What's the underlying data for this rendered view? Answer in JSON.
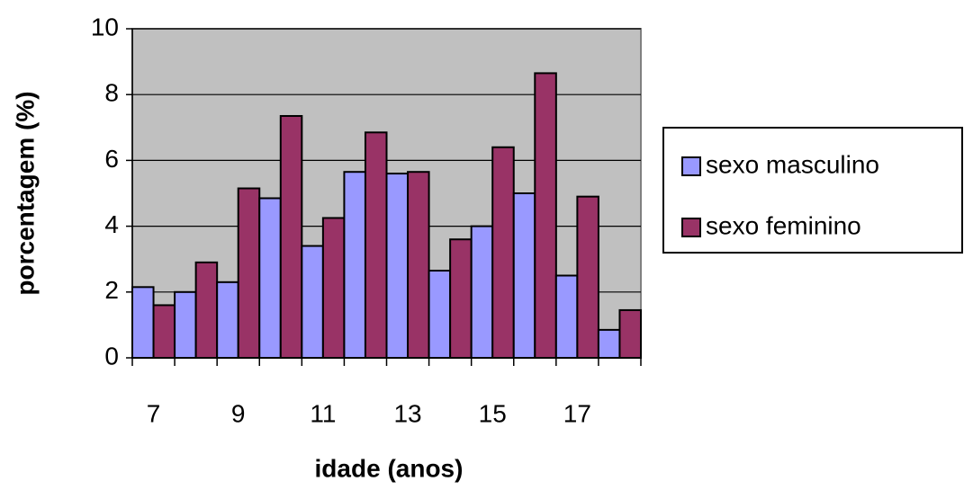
{
  "chart_data": {
    "type": "bar",
    "x_label": "idade (anos)",
    "y_label": "porcentagem (%)",
    "categories": [
      "7",
      null,
      "9",
      null,
      "11",
      null,
      "13",
      null,
      "15",
      null,
      "17",
      null
    ],
    "series": [
      {
        "name": "sexo masculino",
        "color": "#9999ff",
        "values": [
          2.15,
          2.0,
          2.3,
          4.85,
          3.4,
          5.65,
          5.6,
          2.65,
          4.0,
          5.0,
          2.5,
          0.85
        ]
      },
      {
        "name": "sexo feminino",
        "color": "#993366",
        "values": [
          1.6,
          2.9,
          5.15,
          7.35,
          4.25,
          6.85,
          5.65,
          3.6,
          6.4,
          8.65,
          4.9,
          1.45
        ]
      }
    ],
    "ylim": [
      0,
      10
    ],
    "yticks": [
      0,
      2,
      4,
      6,
      8,
      10
    ],
    "grid": true,
    "legend": "right",
    "plot_background": "#c0c0c0"
  }
}
